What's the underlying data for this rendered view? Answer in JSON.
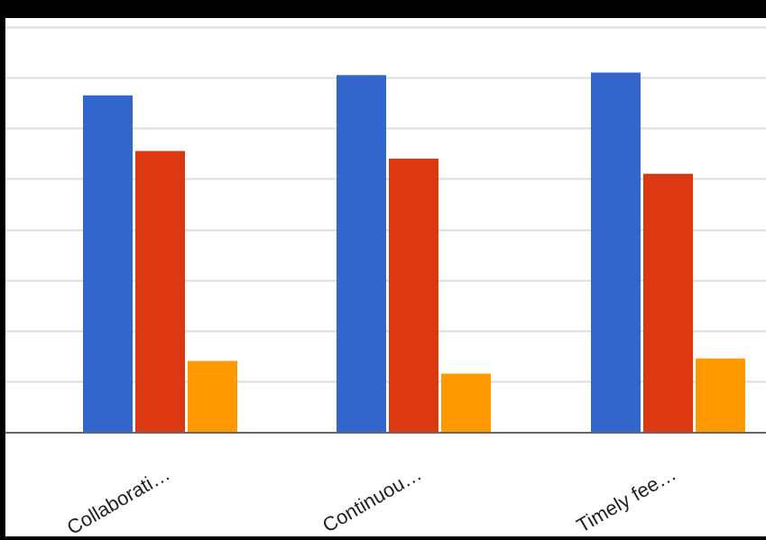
{
  "chart_data": {
    "type": "bar",
    "categories": [
      "Collaborati…",
      "Continuou…",
      "Timely fee…"
    ],
    "series": [
      {
        "values": [
          66.5,
          70.5,
          71
        ],
        "color": "#3366cc"
      },
      {
        "values": [
          55.5,
          54,
          51
        ],
        "color": "#dc3912"
      },
      {
        "values": [
          14,
          11.5,
          14.5
        ],
        "color": "#ff9900"
      }
    ],
    "ylim": [
      0,
      80
    ],
    "grid": true,
    "legend": "none",
    "gridline_color": "#dddddd",
    "baseline_color": "#666666",
    "frame_color": "#000000",
    "background_color": "#ffffff"
  }
}
